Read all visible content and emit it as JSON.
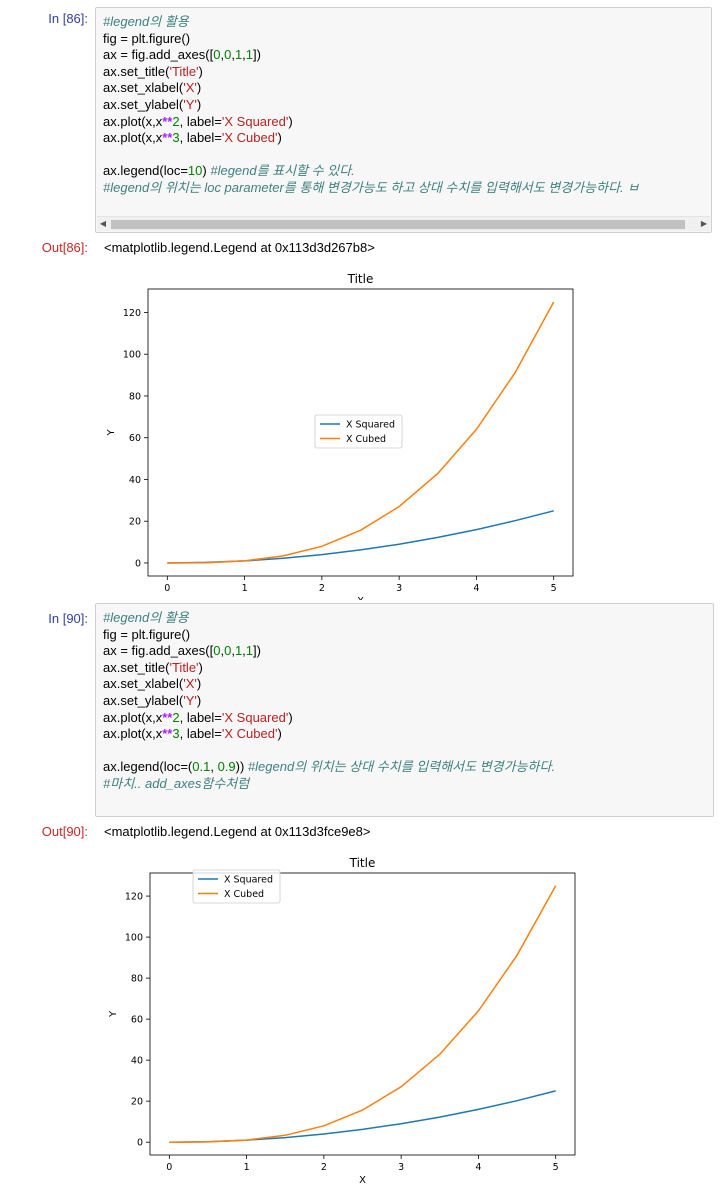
{
  "cells": [
    {
      "in_prompt": "In [86]:",
      "out_prompt": "Out[86]:",
      "output_text": "<matplotlib.legend.Legend at 0x113d3d267b8>",
      "code_lines": [
        [
          {
            "t": "#legend의 활용",
            "c": "cm"
          }
        ],
        [
          {
            "t": "fig = plt.figure()",
            "c": ""
          }
        ],
        [
          {
            "t": "ax = fig.add_axes([",
            "c": ""
          },
          {
            "t": "0",
            "c": "nu"
          },
          {
            "t": ",",
            "c": ""
          },
          {
            "t": "0",
            "c": "nu"
          },
          {
            "t": ",",
            "c": ""
          },
          {
            "t": "1",
            "c": "nu"
          },
          {
            "t": ",",
            "c": ""
          },
          {
            "t": "1",
            "c": "nu"
          },
          {
            "t": "])",
            "c": ""
          }
        ],
        [
          {
            "t": "ax.set_title(",
            "c": ""
          },
          {
            "t": "'Title'",
            "c": "st"
          },
          {
            "t": ")",
            "c": ""
          }
        ],
        [
          {
            "t": "ax.set_xlabel(",
            "c": ""
          },
          {
            "t": "'X'",
            "c": "st"
          },
          {
            "t": ")",
            "c": ""
          }
        ],
        [
          {
            "t": "ax.set_ylabel(",
            "c": ""
          },
          {
            "t": "'Y'",
            "c": "st"
          },
          {
            "t": ")",
            "c": ""
          }
        ],
        [
          {
            "t": "ax.plot(x,x",
            "c": ""
          },
          {
            "t": "**",
            "c": "op"
          },
          {
            "t": "2",
            "c": "nu"
          },
          {
            "t": ", label=",
            "c": ""
          },
          {
            "t": "'X Squared'",
            "c": "st"
          },
          {
            "t": ")",
            "c": ""
          }
        ],
        [
          {
            "t": "ax.plot(x,x",
            "c": ""
          },
          {
            "t": "**",
            "c": "op"
          },
          {
            "t": "3",
            "c": "nu"
          },
          {
            "t": ", label=",
            "c": ""
          },
          {
            "t": "'X Cubed'",
            "c": "st"
          },
          {
            "t": ")",
            "c": ""
          }
        ],
        [],
        [
          {
            "t": "ax.legend(loc=",
            "c": ""
          },
          {
            "t": "10",
            "c": "nu"
          },
          {
            "t": ") ",
            "c": ""
          },
          {
            "t": "#legend를 표시할 수 있다.",
            "c": "cm"
          }
        ],
        [
          {
            "t": "#legend의 위치는 loc parameter를 통해 변경가능도 하고 상대 수치를 입력해서도 변경가능하다. ㅂ",
            "c": "cm"
          }
        ]
      ],
      "scroll_left": "◀",
      "scroll_right": "▶"
    },
    {
      "in_prompt": "In [90]:",
      "out_prompt": "Out[90]:",
      "output_text": "<matplotlib.legend.Legend at 0x113d3fce9e8>",
      "code_lines": [
        [
          {
            "t": "#legend의 활용",
            "c": "cm"
          }
        ],
        [
          {
            "t": "fig = plt.figure()",
            "c": ""
          }
        ],
        [
          {
            "t": "ax = fig.add_axes([",
            "c": ""
          },
          {
            "t": "0",
            "c": "nu"
          },
          {
            "t": ",",
            "c": ""
          },
          {
            "t": "0",
            "c": "nu"
          },
          {
            "t": ",",
            "c": ""
          },
          {
            "t": "1",
            "c": "nu"
          },
          {
            "t": ",",
            "c": ""
          },
          {
            "t": "1",
            "c": "nu"
          },
          {
            "t": "])",
            "c": ""
          }
        ],
        [
          {
            "t": "ax.set_title(",
            "c": ""
          },
          {
            "t": "'Title'",
            "c": "st"
          },
          {
            "t": ")",
            "c": ""
          }
        ],
        [
          {
            "t": "ax.set_xlabel(",
            "c": ""
          },
          {
            "t": "'X'",
            "c": "st"
          },
          {
            "t": ")",
            "c": ""
          }
        ],
        [
          {
            "t": "ax.set_ylabel(",
            "c": ""
          },
          {
            "t": "'Y'",
            "c": "st"
          },
          {
            "t": ")",
            "c": ""
          }
        ],
        [
          {
            "t": "ax.plot(x,x",
            "c": ""
          },
          {
            "t": "**",
            "c": "op"
          },
          {
            "t": "2",
            "c": "nu"
          },
          {
            "t": ", label=",
            "c": ""
          },
          {
            "t": "'X Squared'",
            "c": "st"
          },
          {
            "t": ")",
            "c": ""
          }
        ],
        [
          {
            "t": "ax.plot(x,x",
            "c": ""
          },
          {
            "t": "**",
            "c": "op"
          },
          {
            "t": "3",
            "c": "nu"
          },
          {
            "t": ", label=",
            "c": ""
          },
          {
            "t": "'X Cubed'",
            "c": "st"
          },
          {
            "t": ")",
            "c": ""
          }
        ],
        [],
        [
          {
            "t": "ax.legend(loc=(",
            "c": ""
          },
          {
            "t": "0.1",
            "c": "nu"
          },
          {
            "t": ", ",
            "c": ""
          },
          {
            "t": "0.9",
            "c": "nu"
          },
          {
            "t": ")) ",
            "c": ""
          },
          {
            "t": "#legend의 위치는 상대 수치를 입력해서도 변경가능하다.",
            "c": "cm"
          }
        ],
        [
          {
            "t": "#마치.. add_axes함수처럼",
            "c": "cm"
          }
        ]
      ]
    }
  ],
  "chart_data": [
    {
      "type": "line",
      "title": "Title",
      "xlabel": "X",
      "ylabel": "Y",
      "x": [
        0,
        0.5,
        1,
        1.5,
        2,
        2.5,
        3,
        3.5,
        4,
        4.5,
        5
      ],
      "xlim": [
        -0.25,
        5.25
      ],
      "ylim": [
        -6.25,
        131.25
      ],
      "xticks": [
        "0",
        "1",
        "2",
        "3",
        "4",
        "5"
      ],
      "yticks": [
        "0",
        "20",
        "40",
        "60",
        "80",
        "100",
        "120"
      ],
      "legend_position": "center",
      "series": [
        {
          "name": "X Squared",
          "color": "#1f77b4",
          "values": [
            0,
            0.25,
            1,
            2.25,
            4,
            6.25,
            9,
            12.25,
            16,
            20.25,
            25
          ]
        },
        {
          "name": "X Cubed",
          "color": "#ff7f0e",
          "values": [
            0,
            0.125,
            1,
            3.375,
            8,
            15.625,
            27,
            42.875,
            64,
            91.125,
            125
          ]
        }
      ]
    },
    {
      "type": "line",
      "title": "Title",
      "xlabel": "X",
      "ylabel": "Y",
      "x": [
        0,
        0.5,
        1,
        1.5,
        2,
        2.5,
        3,
        3.5,
        4,
        4.5,
        5
      ],
      "xlim": [
        -0.25,
        5.25
      ],
      "ylim": [
        -6.25,
        131.25
      ],
      "xticks": [
        "0",
        "1",
        "2",
        "3",
        "4",
        "5"
      ],
      "yticks": [
        "0",
        "20",
        "40",
        "60",
        "80",
        "100",
        "120"
      ],
      "legend_position": "upper-left (0.1, 0.9)",
      "series": [
        {
          "name": "X Squared",
          "color": "#1f77b4",
          "values": [
            0,
            0.25,
            1,
            2.25,
            4,
            6.25,
            9,
            12.25,
            16,
            20.25,
            25
          ]
        },
        {
          "name": "X Cubed",
          "color": "#ff7f0e",
          "values": [
            0,
            0.125,
            1,
            3.375,
            8,
            15.625,
            27,
            42.875,
            64,
            91.125,
            125
          ]
        }
      ]
    }
  ]
}
